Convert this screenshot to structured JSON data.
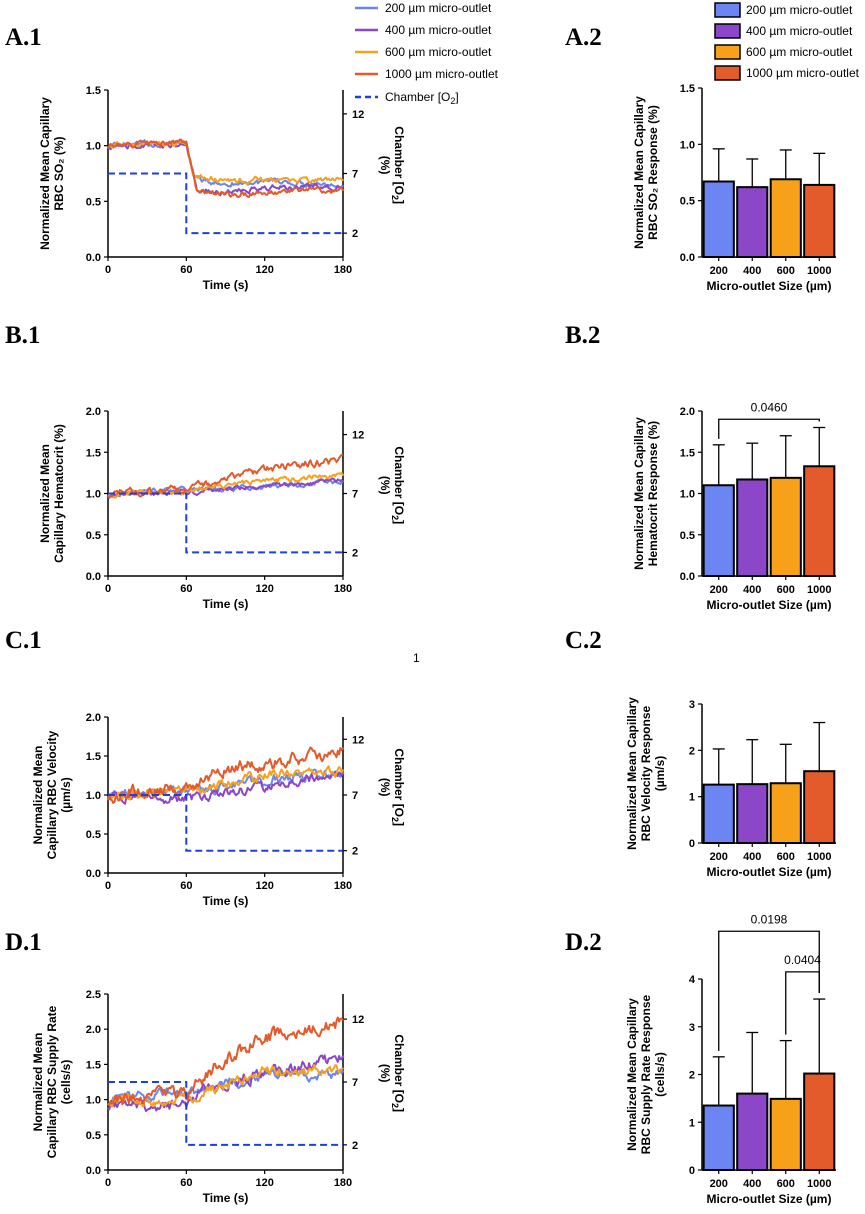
{
  "page_number": "1",
  "legend_line": {
    "entries": [
      {
        "label": "200 µm micro-outlet",
        "color": "#6b86f2",
        "dash": false
      },
      {
        "label": "400 µm micro-outlet",
        "color": "#8b47c8",
        "dash": false
      },
      {
        "label": "600 µm micro-outlet",
        "color": "#f7a11a",
        "dash": false
      },
      {
        "label": "1000 µm micro-outlet",
        "color": "#e35a2b",
        "dash": false
      },
      {
        "label": "Chamber [O",
        "sub": "2",
        "suffix": "]",
        "color": "#1f3fe0",
        "dash": true
      }
    ]
  },
  "legend_bar": {
    "entries": [
      {
        "label": "200 µm micro-outlet",
        "color": "#6b86f2"
      },
      {
        "label": "400 µm micro-outlet",
        "color": "#8b47c8"
      },
      {
        "label": "600 µm micro-outlet",
        "color": "#f7a11a"
      },
      {
        "label": "1000 µm micro-outlet",
        "color": "#e35a2b"
      }
    ]
  },
  "chart_data": [
    {
      "id": "A1",
      "panel_label": "A.1",
      "type": "line",
      "ylabel_lines": [
        "Normalized Mean Capillary",
        "RBC SO₂ (%)"
      ],
      "xlabel": "Time (s)",
      "xlim": [
        0,
        180
      ],
      "xticks": [
        0,
        60,
        120,
        180
      ],
      "ylim": [
        0,
        1.5
      ],
      "yticks": [
        "0.0",
        "0.5",
        "1.0",
        "1.5"
      ],
      "y2label": "Chamber [O",
      "y2sub": "2",
      "y2suffix": "]",
      "y2unit": "(%)",
      "y2lim": [
        0,
        14
      ],
      "y2ticks": [
        2,
        7,
        12
      ],
      "chamber": [
        [
          0,
          7
        ],
        [
          60,
          7
        ],
        [
          60,
          2
        ],
        [
          180,
          2
        ]
      ],
      "series": [
        {
          "name": "200 µm micro-outlet",
          "color": "#6b86f2",
          "base": [
            [
              0,
              1.0
            ],
            [
              60,
              1.02
            ],
            [
              66,
              0.72
            ],
            [
              80,
              0.66
            ],
            [
              120,
              0.67
            ],
            [
              180,
              0.66
            ]
          ],
          "noise": 0.02
        },
        {
          "name": "400 µm micro-outlet",
          "color": "#8b47c8",
          "base": [
            [
              0,
              0.99
            ],
            [
              60,
              1.01
            ],
            [
              68,
              0.62
            ],
            [
              90,
              0.58
            ],
            [
              120,
              0.62
            ],
            [
              180,
              0.63
            ]
          ],
          "noise": 0.02
        },
        {
          "name": "600 µm micro-outlet",
          "color": "#f7a11a",
          "base": [
            [
              0,
              1.0
            ],
            [
              60,
              1.02
            ],
            [
              65,
              0.72
            ],
            [
              90,
              0.69
            ],
            [
              180,
              0.69
            ]
          ],
          "noise": 0.02
        },
        {
          "name": "1000 µm micro-outlet",
          "color": "#e35a2b",
          "base": [
            [
              0,
              1.0
            ],
            [
              60,
              1.03
            ],
            [
              68,
              0.58
            ],
            [
              100,
              0.56
            ],
            [
              150,
              0.6
            ],
            [
              180,
              0.6
            ]
          ],
          "noise": 0.02
        }
      ]
    },
    {
      "id": "A2",
      "panel_label": "A.2",
      "type": "bar",
      "ylabel_lines": [
        "Normalized Mean Capillary",
        "RBC SO₂ Response (%)"
      ],
      "xlabel": "Micro-outlet Size (µm)",
      "categories": [
        "200",
        "400",
        "600",
        "1000"
      ],
      "values": [
        0.67,
        0.62,
        0.69,
        0.64
      ],
      "errors": [
        0.29,
        0.25,
        0.26,
        0.28
      ],
      "colors": [
        "#6b86f2",
        "#8b47c8",
        "#f7a11a",
        "#e35a2b"
      ],
      "ylim": [
        0,
        1.5
      ],
      "yticks": [
        "0.0",
        "0.5",
        "1.0",
        "1.5"
      ],
      "brackets": []
    },
    {
      "id": "B1",
      "panel_label": "B.1",
      "type": "line",
      "ylabel_lines": [
        "Normalized Mean",
        "Capillary Hematocrit (%)"
      ],
      "xlabel": "Time (s)",
      "xlim": [
        0,
        180
      ],
      "xticks": [
        0,
        60,
        120,
        180
      ],
      "ylim": [
        0,
        2.0
      ],
      "yticks": [
        "0.0",
        "0.5",
        "1.0",
        "1.5",
        "2.0"
      ],
      "y2label": "Chamber [O",
      "y2sub": "2",
      "y2suffix": "]",
      "y2unit": "(%)",
      "y2lim": [
        0,
        14
      ],
      "y2ticks": [
        2,
        7,
        12
      ],
      "chamber": [
        [
          0,
          7
        ],
        [
          60,
          7
        ],
        [
          60,
          2
        ],
        [
          180,
          2
        ]
      ],
      "series": [
        {
          "name": "200 µm micro-outlet",
          "color": "#6b86f2",
          "base": [
            [
              0,
              1.0
            ],
            [
              60,
              1.05
            ],
            [
              90,
              1.05
            ],
            [
              180,
              1.15
            ]
          ],
          "noise": 0.025
        },
        {
          "name": "400 µm micro-outlet",
          "color": "#8b47c8",
          "base": [
            [
              0,
              0.98
            ],
            [
              60,
              1.02
            ],
            [
              120,
              1.08
            ],
            [
              180,
              1.15
            ]
          ],
          "noise": 0.025
        },
        {
          "name": "600 µm micro-outlet",
          "color": "#f7a11a",
          "base": [
            [
              0,
              1.0
            ],
            [
              60,
              1.03
            ],
            [
              120,
              1.15
            ],
            [
              180,
              1.22
            ]
          ],
          "noise": 0.025
        },
        {
          "name": "1000 µm micro-outlet",
          "color": "#e35a2b",
          "base": [
            [
              0,
              1.0
            ],
            [
              60,
              1.05
            ],
            [
              90,
              1.2
            ],
            [
              140,
              1.35
            ],
            [
              180,
              1.4
            ]
          ],
          "noise": 0.04
        }
      ]
    },
    {
      "id": "B2",
      "panel_label": "B.2",
      "type": "bar",
      "ylabel_lines": [
        "Normalized Mean Capillary",
        "Hematocrit Response (%)"
      ],
      "xlabel": "Micro-outlet Size (µm)",
      "categories": [
        "200",
        "400",
        "600",
        "1000"
      ],
      "values": [
        1.1,
        1.17,
        1.19,
        1.33
      ],
      "errors": [
        0.49,
        0.44,
        0.51,
        0.47
      ],
      "colors": [
        "#6b86f2",
        "#8b47c8",
        "#f7a11a",
        "#e35a2b"
      ],
      "ylim": [
        0,
        2.0
      ],
      "yticks": [
        "0.0",
        "0.5",
        "1.0",
        "1.5",
        "2.0"
      ],
      "brackets": [
        {
          "from": 0,
          "to": 3,
          "y": 1.9,
          "label": "0.0460"
        }
      ]
    },
    {
      "id": "C1",
      "panel_label": "C.1",
      "type": "line",
      "ylabel_lines": [
        "Normalized Mean",
        "Capillary RBC Velocity",
        "(µm/s)"
      ],
      "xlabel": "Time (s)",
      "xlim": [
        0,
        180
      ],
      "xticks": [
        0,
        60,
        120,
        180
      ],
      "ylim": [
        0,
        2.0
      ],
      "yticks": [
        "0.0",
        "0.5",
        "1.0",
        "1.5",
        "2.0"
      ],
      "y2label": "Chamber [O",
      "y2sub": "2",
      "y2suffix": "]",
      "y2unit": "(%)",
      "y2lim": [
        0,
        14
      ],
      "y2ticks": [
        2,
        7,
        12
      ],
      "chamber": [
        [
          0,
          7
        ],
        [
          60,
          7
        ],
        [
          60,
          2
        ],
        [
          180,
          2
        ]
      ],
      "series": [
        {
          "name": "200 µm micro-outlet",
          "color": "#6b86f2",
          "base": [
            [
              0,
              1.0
            ],
            [
              60,
              1.05
            ],
            [
              120,
              1.2
            ],
            [
              180,
              1.3
            ]
          ],
          "noise": 0.05
        },
        {
          "name": "400 µm micro-outlet",
          "color": "#8b47c8",
          "base": [
            [
              0,
              0.98
            ],
            [
              60,
              0.95
            ],
            [
              80,
              1.0
            ],
            [
              120,
              1.1
            ],
            [
              180,
              1.3
            ]
          ],
          "noise": 0.05
        },
        {
          "name": "600 µm micro-outlet",
          "color": "#f7a11a",
          "base": [
            [
              0,
              1.0
            ],
            [
              60,
              1.05
            ],
            [
              120,
              1.25
            ],
            [
              180,
              1.3
            ]
          ],
          "noise": 0.05
        },
        {
          "name": "1000 µm micro-outlet",
          "color": "#e35a2b",
          "base": [
            [
              0,
              1.0
            ],
            [
              60,
              1.1
            ],
            [
              100,
              1.35
            ],
            [
              140,
              1.45
            ],
            [
              180,
              1.6
            ]
          ],
          "noise": 0.07
        }
      ]
    },
    {
      "id": "C2",
      "panel_label": "C.2",
      "type": "bar",
      "ylabel_lines": [
        "Normalized Mean Capillary",
        "RBC Velocity Response",
        "(µm/s)"
      ],
      "xlabel": "Micro-outlet Size (µm)",
      "categories": [
        "200",
        "400",
        "600",
        "1000"
      ],
      "values": [
        1.26,
        1.27,
        1.29,
        1.55
      ],
      "errors": [
        0.77,
        0.96,
        0.84,
        1.05
      ],
      "colors": [
        "#6b86f2",
        "#8b47c8",
        "#f7a11a",
        "#e35a2b"
      ],
      "ylim": [
        0,
        3
      ],
      "yticks": [
        "0",
        "1",
        "2",
        "3"
      ],
      "brackets": []
    },
    {
      "id": "D1",
      "panel_label": "D.1",
      "type": "line",
      "ylabel_lines": [
        "Normalized Mean",
        "Capillary RBC Supply Rate",
        "(cells/s)"
      ],
      "xlabel": "Time (s)",
      "xlim": [
        0,
        180
      ],
      "xticks": [
        0,
        60,
        120,
        180
      ],
      "ylim": [
        0,
        2.5
      ],
      "yticks": [
        "0.0",
        "0.5",
        "1.0",
        "1.5",
        "2.0",
        "2.5"
      ],
      "y2label": "Chamber [O",
      "y2sub": "2",
      "y2suffix": "]",
      "y2unit": "(%)",
      "y2lim": [
        0,
        14
      ],
      "y2ticks": [
        2,
        7,
        12
      ],
      "chamber": [
        [
          0,
          7
        ],
        [
          60,
          7
        ],
        [
          60,
          2
        ],
        [
          180,
          2
        ]
      ],
      "series": [
        {
          "name": "200 µm micro-outlet",
          "color": "#6b86f2",
          "base": [
            [
              0,
              1.0
            ],
            [
              60,
              1.1
            ],
            [
              120,
              1.35
            ],
            [
              180,
              1.35
            ]
          ],
          "noise": 0.06
        },
        {
          "name": "400 µm micro-outlet",
          "color": "#8b47c8",
          "base": [
            [
              0,
              0.95
            ],
            [
              60,
              0.9
            ],
            [
              80,
              1.2
            ],
            [
              120,
              1.35
            ],
            [
              180,
              1.6
            ]
          ],
          "noise": 0.07
        },
        {
          "name": "600 µm micro-outlet",
          "color": "#f7a11a",
          "base": [
            [
              0,
              1.0
            ],
            [
              60,
              1.0
            ],
            [
              120,
              1.4
            ],
            [
              180,
              1.45
            ]
          ],
          "noise": 0.06
        },
        {
          "name": "1000 µm micro-outlet",
          "color": "#e35a2b",
          "base": [
            [
              0,
              1.0
            ],
            [
              60,
              1.05
            ],
            [
              90,
              1.6
            ],
            [
              130,
              1.95
            ],
            [
              180,
              2.1
            ]
          ],
          "noise": 0.08
        }
      ]
    },
    {
      "id": "D2",
      "panel_label": "D.2",
      "type": "bar",
      "ylabel_lines": [
        "Normalized Mean Capillary",
        "RBC Supply Rate Response",
        "(cells/s)"
      ],
      "xlabel": "Micro-outlet Size (µm)",
      "categories": [
        "200",
        "400",
        "600",
        "1000"
      ],
      "values": [
        1.35,
        1.6,
        1.49,
        2.02
      ],
      "errors": [
        1.02,
        1.28,
        1.22,
        1.56
      ],
      "colors": [
        "#6b86f2",
        "#8b47c8",
        "#f7a11a",
        "#e35a2b"
      ],
      "ylim": [
        0,
        4
      ],
      "yticks": [
        "0",
        "1",
        "2",
        "3",
        "4"
      ],
      "brackets": [
        {
          "from": 0,
          "to": 3,
          "y": 5.0,
          "label": "0.0198"
        },
        {
          "from": 2,
          "to": 3,
          "y": 4.15,
          "label": "0.0404"
        }
      ]
    }
  ]
}
